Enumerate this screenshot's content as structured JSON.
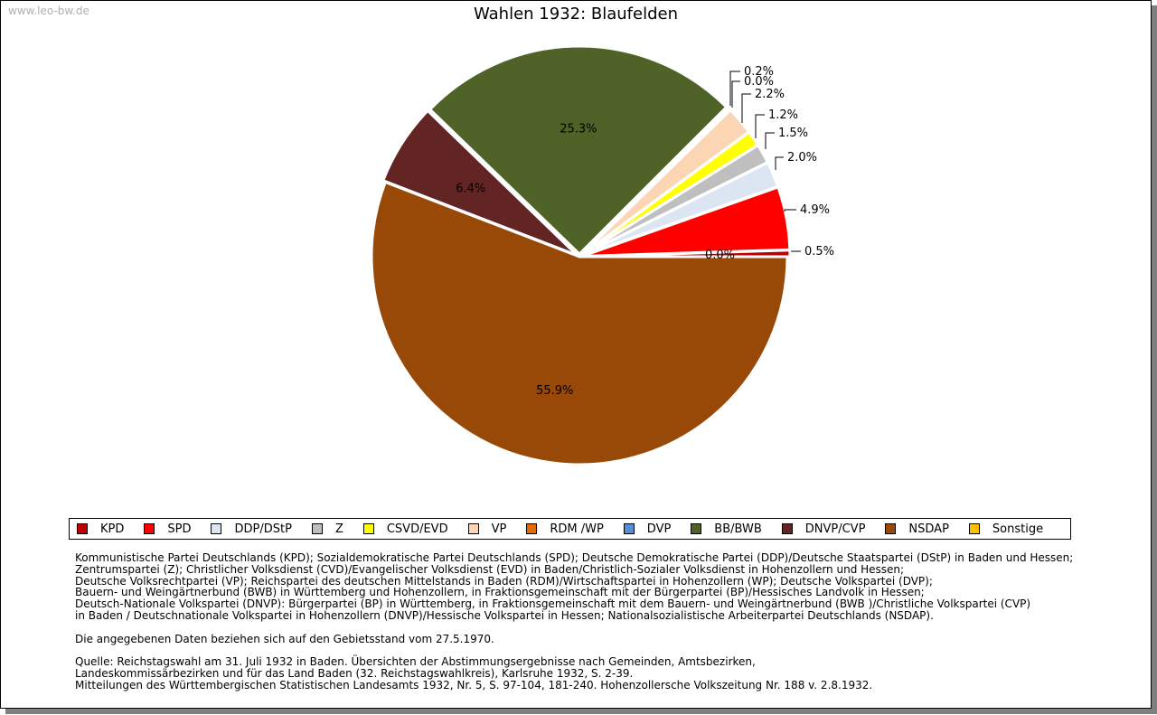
{
  "watermark": "www.leo-bw.de",
  "chart_data": {
    "type": "pie",
    "title": "Wahlen 1932: Blaufelden",
    "categories": [
      "KPD",
      "SPD",
      "DDP/DStP",
      "Z",
      "CSVD/EVD",
      "VP",
      "RDM /WP",
      "DVP",
      "BB/BWB",
      "DNVP/CVP",
      "NSDAP",
      "Sonstige"
    ],
    "values": [
      0.5,
      4.9,
      2.0,
      1.5,
      1.2,
      2.2,
      0.0,
      0.2,
      25.3,
      6.4,
      55.9,
      0.0
    ],
    "labels": [
      "0.5%",
      "4.9%",
      "2.0%",
      "1.5%",
      "1.2%",
      "2.2%",
      "0.0%",
      "0.2%",
      "25.3%",
      "6.4%",
      "55.9%",
      "0.0%"
    ],
    "colors": [
      "#c00000",
      "#ff0000",
      "#dce6f2",
      "#bfbfbf",
      "#ffff00",
      "#fcd5b5",
      "#e36c09",
      "#558ed5",
      "#4f6228",
      "#632523",
      "#984807",
      "#ffc000"
    ],
    "legend_position": "bottom"
  },
  "notes": [
    "Kommunistische Partei Deutschlands (KPD); Sozialdemokratische Partei Deutschlands (SPD); Deutsche Demokratische Partei (DDP)/Deutsche Staatspartei (DStP) in Baden und Hessen;",
    "Zentrumspartei (Z); Christlicher Volksdienst (CVD)/Evangelischer Volksdienst (EVD) in Baden/Christlich-Sozialer Volksdienst in Hohenzollern und Hessen;",
    "Deutsche Volksrechtpartei (VP); Reichspartei des deutschen Mittelstands in Baden (RDM)/Wirtschaftspartei in Hohenzollern (WP); Deutsche Volkspartei (DVP);",
    "Bauern- und Weingärtnerbund (BWB) in Württemberg und Hohenzollern, in Fraktionsgemeinschaft mit der Bürgerpartei (BP)/Hessisches Landvolk in Hessen;",
    "Deutsch-Nationale Volkspartei (DNVP): Bürgerpartei (BP) in Württemberg, in Fraktionsgemeinschaft mit dem Bauern- und Weingärtnerbund (BWB )/Christliche Volkspartei (CVP)",
    "in Baden / Deutschnationale Volkspartei in Hohenzollern (DNVP)/Hessische Volkspartei in Hessen; Nationalsozialistische Arbeiterpartei Deutschlands (NSDAP).",
    "",
    "Die angegebenen Daten beziehen sich auf den Gebietsstand vom 27.5.1970.",
    "",
    "Quelle: Reichstagswahl am 31. Juli 1932 in Baden. Übersichten der Abstimmungsergebnisse nach Gemeinden, Amtsbezirken,",
    "Landeskommissärbezirken und für das Land Baden (32. Reichstagswahlkreis), Karlsruhe 1932, S. 2-39.",
    "Mitteilungen des Württembergischen Statistischen Landesamts 1932, Nr. 5, S. 97-104, 181-240. Hohenzollersche Volkszeitung Nr. 188 v. 2.8.1932."
  ]
}
